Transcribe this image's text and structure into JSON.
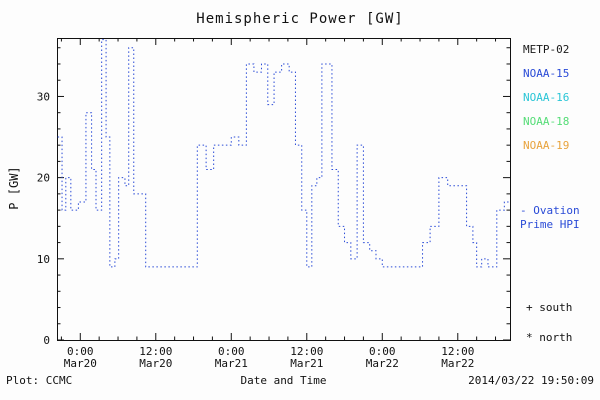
{
  "chart_data": {
    "type": "line",
    "title": "Hemispheric Power [GW]",
    "xlabel": "Date and Time",
    "ylabel": "P [GW]",
    "line_style": "dotted-step",
    "xlim": [
      -3.7,
      68.3
    ],
    "ylim": [
      0,
      37.2
    ],
    "x_units": "hours from Mar20 0:00",
    "x_ticks": [
      {
        "time": "0:00",
        "date": "Mar20",
        "hour": 0
      },
      {
        "time": "12:00",
        "date": "Mar20",
        "hour": 12
      },
      {
        "time": "0:00",
        "date": "Mar21",
        "hour": 24
      },
      {
        "time": "12:00",
        "date": "Mar21",
        "hour": 36
      },
      {
        "time": "0:00",
        "date": "Mar22",
        "hour": 48
      },
      {
        "time": "12:00",
        "date": "Mar22",
        "hour": 60
      }
    ],
    "y_ticks": [
      {
        "label": "0",
        "value": 0
      },
      {
        "label": "10",
        "value": 10
      },
      {
        "label": "20",
        "value": 20
      },
      {
        "label": "30",
        "value": 30
      }
    ],
    "series": [
      {
        "name": "NOAA-15 Ovation Prime HPI",
        "color": "#2a4bd7",
        "points": [
          [
            -3.6,
            25
          ],
          [
            -2.9,
            16
          ],
          [
            -2.3,
            20
          ],
          [
            -1.5,
            16
          ],
          [
            -0.3,
            17
          ],
          [
            0.9,
            28
          ],
          [
            1.8,
            21
          ],
          [
            2.5,
            16
          ],
          [
            3.4,
            37
          ],
          [
            4.1,
            25
          ],
          [
            4.7,
            9
          ],
          [
            5.5,
            10
          ],
          [
            6.1,
            20
          ],
          [
            7.1,
            19
          ],
          [
            7.7,
            36
          ],
          [
            8.5,
            18
          ],
          [
            9.6,
            18
          ],
          [
            10.4,
            9
          ],
          [
            18.6,
            24
          ],
          [
            20.0,
            21
          ],
          [
            21.2,
            24
          ],
          [
            22.6,
            24
          ],
          [
            24.0,
            25
          ],
          [
            25.2,
            24
          ],
          [
            26.4,
            34
          ],
          [
            27.6,
            33
          ],
          [
            28.8,
            34
          ],
          [
            29.8,
            29
          ],
          [
            30.8,
            33
          ],
          [
            32.0,
            34
          ],
          [
            33.2,
            33
          ],
          [
            34.2,
            24
          ],
          [
            35.2,
            16
          ],
          [
            36.0,
            9
          ],
          [
            36.8,
            19
          ],
          [
            37.6,
            20
          ],
          [
            38.4,
            34
          ],
          [
            40.0,
            21
          ],
          [
            41.0,
            14
          ],
          [
            42.0,
            12
          ],
          [
            43.0,
            10
          ],
          [
            44.0,
            24
          ],
          [
            45.0,
            12
          ],
          [
            46.0,
            11
          ],
          [
            47.0,
            10
          ],
          [
            48.0,
            9
          ],
          [
            54.4,
            12
          ],
          [
            55.6,
            14
          ],
          [
            57.0,
            20
          ],
          [
            58.4,
            19
          ],
          [
            60.0,
            19
          ],
          [
            61.4,
            14
          ],
          [
            62.4,
            12
          ],
          [
            63.0,
            9
          ],
          [
            63.8,
            10
          ],
          [
            64.8,
            9
          ],
          [
            66.2,
            16
          ],
          [
            67.4,
            17
          ]
        ]
      }
    ]
  },
  "legend": {
    "items": [
      {
        "label": "METP-02",
        "color": "#1a1a1a"
      },
      {
        "label": "NOAA-15",
        "color": "#2a4bd7"
      },
      {
        "label": "NOAA-16",
        "color": "#29c5d6"
      },
      {
        "label": "NOAA-18",
        "color": "#55dd77"
      },
      {
        "label": "NOAA-19",
        "color": "#e8a33d"
      }
    ]
  },
  "ovation": {
    "line1": "- Ovation",
    "line2": "Prime HPI",
    "color": "#2a4bd7"
  },
  "markers": {
    "south": "+ south",
    "north": "* north"
  },
  "footer": {
    "source": "Plot: CCMC",
    "timestamp": "2014/03/22 19:50:09"
  }
}
